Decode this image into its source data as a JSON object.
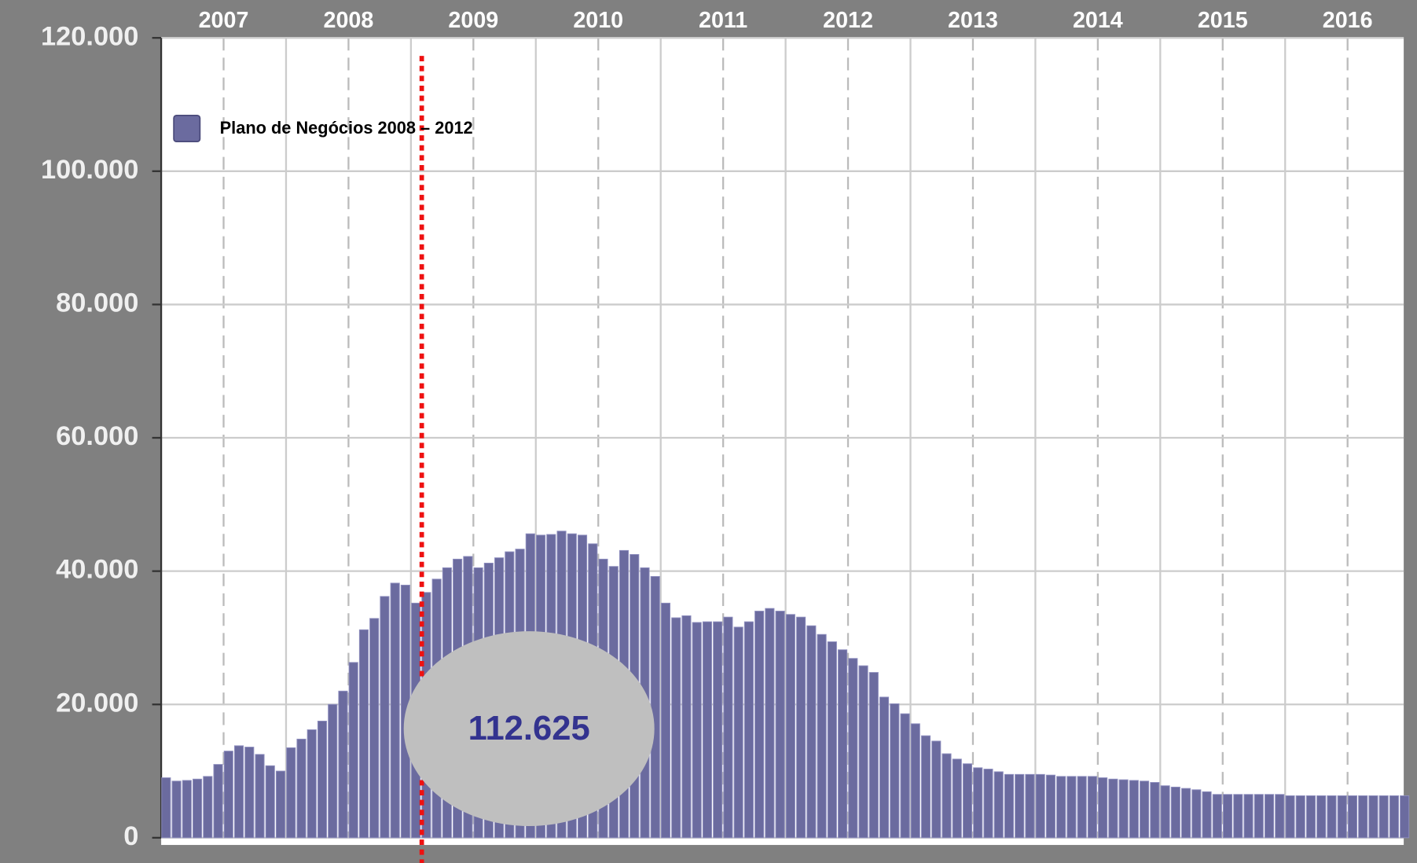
{
  "chart_data": {
    "type": "bar",
    "legend": "Plano de Negócios 2008 – 2012",
    "annotation": "112.625",
    "color": "#6b6b9f",
    "year_labels": [
      "2007",
      "2008",
      "2009",
      "2010",
      "2011",
      "2012",
      "2013",
      "2014",
      "2015",
      "2016"
    ],
    "categories": [
      null,
      null,
      null,
      null,
      null,
      null,
      null,
      null,
      null,
      null,
      null,
      null,
      null,
      null,
      null,
      null,
      null,
      null,
      null,
      null,
      null,
      null,
      null,
      null,
      null,
      null,
      null,
      null,
      null,
      null,
      null,
      null,
      null,
      null,
      null,
      null,
      null,
      null,
      null,
      null,
      null,
      null,
      null,
      null,
      null,
      null,
      null,
      null,
      null,
      null,
      null,
      null,
      null,
      null,
      null,
      null,
      null,
      null,
      null,
      null,
      null,
      null,
      null,
      null,
      null,
      null,
      null,
      null,
      null,
      null,
      null,
      null,
      null,
      null,
      null,
      null,
      null,
      null,
      null,
      null,
      null,
      null,
      null,
      null,
      null,
      null,
      null,
      null,
      null,
      null,
      null,
      null,
      null,
      null,
      null,
      null,
      null,
      null,
      null,
      null,
      null,
      null,
      null,
      null,
      null,
      null,
      null,
      null,
      null,
      null,
      null,
      null,
      null,
      null,
      null,
      null,
      null,
      null,
      null,
      null
    ],
    "values": [
      9000,
      8500,
      8600,
      8800,
      9200,
      11000,
      13000,
      13800,
      13600,
      12500,
      10800,
      10000,
      13500,
      14800,
      16200,
      17500,
      20000,
      22000,
      26300,
      31200,
      32900,
      36200,
      38200,
      37900,
      35200,
      36800,
      38800,
      40500,
      41800,
      42200,
      40500,
      41200,
      42000,
      42900,
      43300,
      45600,
      45400,
      45500,
      46000,
      45600,
      45400,
      44100,
      41800,
      40700,
      43100,
      42500,
      40500,
      39200,
      35200,
      33000,
      33300,
      32300,
      32400,
      32400,
      33100,
      31600,
      32400,
      34000,
      34400,
      34000,
      33500,
      33100,
      31800,
      30500,
      29400,
      28200,
      26900,
      25800,
      24800,
      21100,
      20100,
      18600,
      17100,
      15300,
      14500,
      12600,
      11800,
      11100,
      10500,
      10300,
      9900,
      9500,
      9500,
      9500,
      9500,
      9400,
      9200,
      9200,
      9200,
      9200,
      9000,
      8800,
      8700,
      8600,
      8500,
      8300,
      7800,
      7600,
      7400,
      7200,
      6900,
      6500,
      6500,
      6500,
      6500,
      6500,
      6500,
      6500,
      6300,
      6300,
      6300,
      6300,
      6300,
      6300,
      6300,
      6300,
      6300,
      6300,
      6300,
      6300
    ],
    "ylim": [
      0,
      120000
    ],
    "yticks": [
      {
        "value": 0,
        "label": "0"
      },
      {
        "value": 20000,
        "label": "20.000"
      },
      {
        "value": 40000,
        "label": "40.000"
      },
      {
        "value": 60000,
        "label": "60.000"
      },
      {
        "value": 80000,
        "label": "80.000"
      },
      {
        "value": 100000,
        "label": "100.000"
      },
      {
        "value": 120000,
        "label": "120.000"
      }
    ],
    "grid": true
  }
}
